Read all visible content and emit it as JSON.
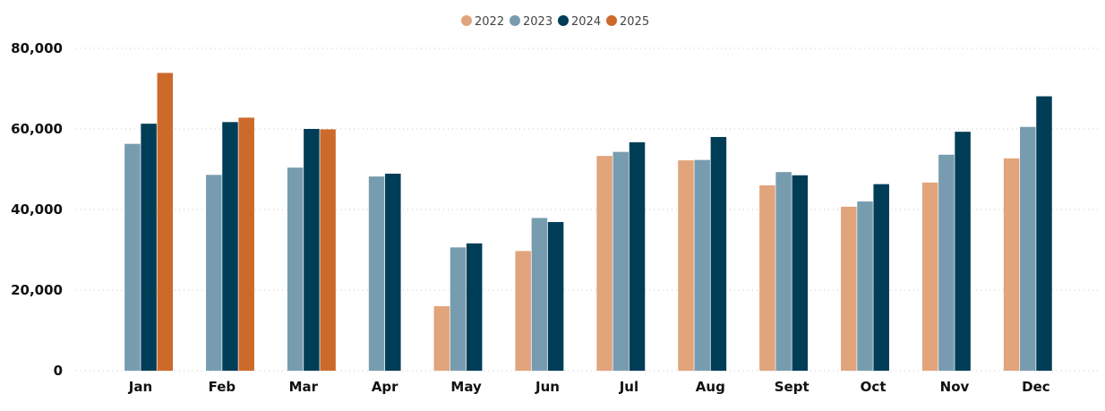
{
  "chart_data": {
    "type": "bar",
    "categories": [
      "Jan",
      "Feb",
      "Mar",
      "Apr",
      "May",
      "Jun",
      "Jul",
      "Aug",
      "Sept",
      "Oct",
      "Nov",
      "Dec"
    ],
    "series": [
      {
        "name": "2022",
        "color": "#E2A47B",
        "values": [
          null,
          null,
          null,
          null,
          16000,
          29700,
          53300,
          52200,
          46000,
          40700,
          46700,
          52700
        ]
      },
      {
        "name": "2023",
        "color": "#779CAF",
        "values": [
          56300,
          48600,
          50400,
          48200,
          30600,
          37900,
          54300,
          52300,
          49300,
          42000,
          53600,
          60500
        ]
      },
      {
        "name": "2024",
        "color": "#003D57",
        "values": [
          61300,
          61700,
          60000,
          48900,
          31600,
          36900,
          56700,
          58000,
          48500,
          46300,
          59300,
          68100
        ]
      },
      {
        "name": "2025",
        "color": "#CC6A2B",
        "values": [
          73900,
          62800,
          59900,
          null,
          null,
          null,
          null,
          null,
          null,
          null,
          null,
          null
        ]
      }
    ],
    "y_ticks": [
      "0",
      "20,000",
      "40,000",
      "60,000",
      "80,000"
    ],
    "ylim": [
      0,
      80000
    ],
    "grid": true,
    "legend_position": "top-center"
  }
}
